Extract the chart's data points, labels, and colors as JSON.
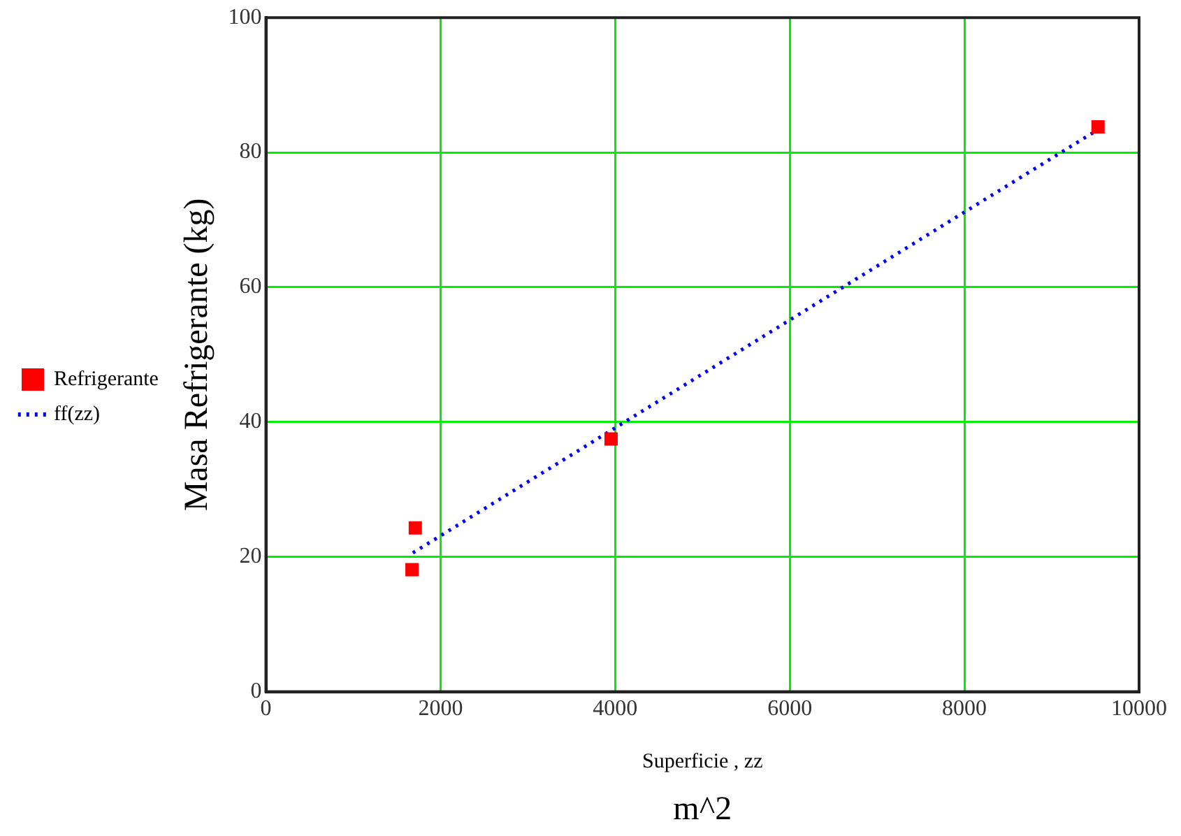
{
  "chart_data": {
    "type": "scatter",
    "xlabel": "Superficie , zz",
    "ylabel": "Masa Refrigerante (kg)",
    "annotations": [
      "m^2"
    ],
    "xlim": [
      0,
      10000
    ],
    "xticks": [
      0,
      2000,
      4000,
      6000,
      8000,
      10000
    ],
    "ylim": [
      0,
      100
    ],
    "yticks": [
      0,
      20,
      40,
      60,
      80,
      100
    ],
    "grid": true,
    "legend": "left",
    "series": [
      {
        "name": "Refrigerante",
        "type": "scatter",
        "color": "#ff0000",
        "marker": "square",
        "x": [
          1673,
          1711,
          3953,
          9530
        ],
        "values": [
          18.1,
          24.3,
          37.5,
          83.8
        ]
      },
      {
        "name": "ff(zz)",
        "type": "line",
        "color": "#0000ff",
        "marker": "none",
        "line_style": "dotted",
        "x": [
          1683,
          9494
        ],
        "values": [
          20.6,
          83.1
        ]
      }
    ]
  }
}
